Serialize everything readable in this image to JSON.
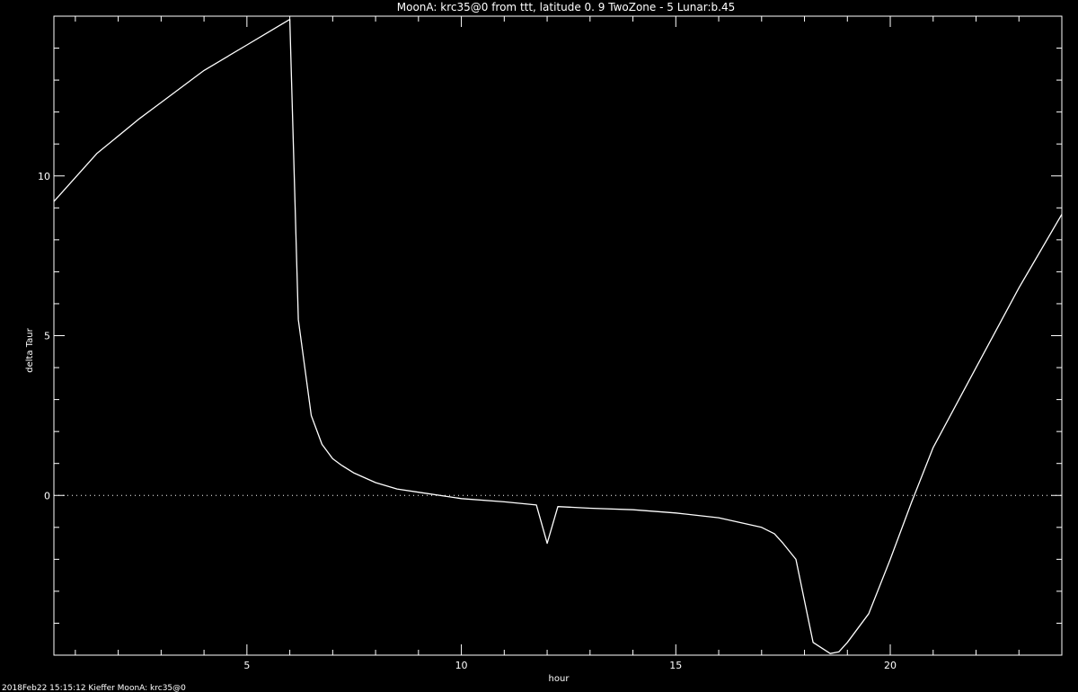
{
  "chart_data": {
    "type": "line",
    "title": "MoonA: krc35@0 from ttt, latitude 0.  9 TwoZone - 5 Lunar:b.45",
    "xlabel": "hour",
    "ylabel": "delta Taur",
    "xlim": [
      0.5,
      24
    ],
    "ylim": [
      -5,
      15
    ],
    "x_ticks": [
      "5",
      "10",
      "15",
      "20"
    ],
    "y_ticks": [
      "0",
      "5",
      "10"
    ],
    "reference_line": {
      "y": 0,
      "style": "dotted"
    },
    "grid": false,
    "line_color": "#ffffff",
    "background_color": "#000000",
    "series": [
      {
        "x": [
          0.5,
          1.5,
          2.5,
          3,
          4,
          5,
          5.5,
          6,
          6.2,
          6.5,
          6.75,
          7,
          7.2,
          7.5,
          8,
          8.5,
          9,
          10,
          11,
          11.75,
          12,
          12.25,
          13,
          14,
          15,
          16,
          17,
          17.3,
          17.5,
          17.8,
          18.2,
          18.6,
          18.8,
          19,
          19.5,
          20,
          20.5,
          21,
          22,
          23,
          24
        ],
        "y": [
          9.2,
          10.7,
          11.8,
          12.3,
          13.3,
          14.1,
          14.5,
          14.9,
          5.5,
          2.5,
          1.6,
          1.15,
          0.95,
          0.7,
          0.4,
          0.2,
          0.1,
          -0.1,
          -0.2,
          -0.3,
          -1.5,
          -0.35,
          -0.4,
          -0.45,
          -0.55,
          -0.7,
          -1.0,
          -1.2,
          -1.5,
          -2.0,
          -4.6,
          -4.95,
          -4.9,
          -4.6,
          -3.7,
          -2.0,
          -0.2,
          1.5,
          4.0,
          6.5,
          8.8
        ]
      }
    ],
    "footer_text": "2018Feb22 15:15:12 Kieffer MoonA: krc35@0"
  }
}
